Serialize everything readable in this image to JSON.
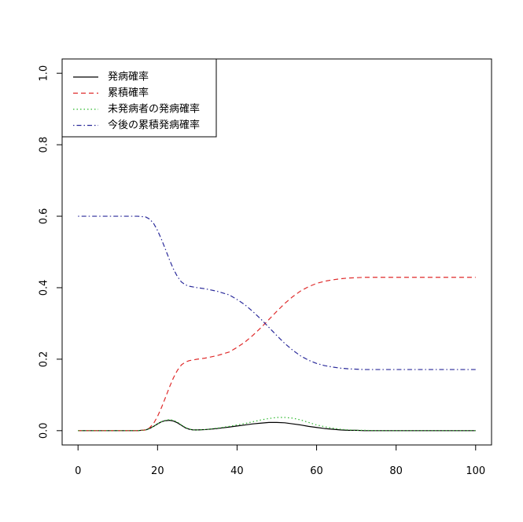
{
  "chart_data": {
    "type": "line",
    "title": "",
    "xlabel": "",
    "ylabel": "",
    "xlim": [
      -4,
      104
    ],
    "ylim": [
      -0.04,
      1.04
    ],
    "x_ticks": [
      0,
      20,
      40,
      60,
      80,
      100
    ],
    "x_tick_labels": [
      "0",
      "20",
      "40",
      "60",
      "80",
      "100"
    ],
    "y_ticks": [
      0.0,
      0.2,
      0.4,
      0.6,
      0.8,
      1.0
    ],
    "y_tick_labels": [
      "0.0",
      "0.2",
      "0.4",
      "0.6",
      "0.8",
      "1.0"
    ],
    "grid": false,
    "legend_position": "top-left",
    "x": [
      0,
      5,
      10,
      15,
      17,
      18,
      19,
      20,
      21,
      22,
      23,
      24,
      25,
      26,
      27,
      28,
      29,
      30,
      32,
      35,
      38,
      40,
      42,
      44,
      46,
      48,
      50,
      52,
      54,
      56,
      58,
      60,
      62,
      64,
      66,
      68,
      70,
      72,
      75,
      80,
      85,
      90,
      95,
      100
    ],
    "series": [
      {
        "name": "発病確率",
        "color": "#000000",
        "dash": "solid",
        "values": [
          0,
          0,
          0,
          0,
          0.002,
          0.006,
          0.012,
          0.019,
          0.025,
          0.028,
          0.029,
          0.027,
          0.022,
          0.015,
          0.008,
          0.004,
          0.002,
          0.002,
          0.003,
          0.006,
          0.01,
          0.013,
          0.016,
          0.019,
          0.021,
          0.023,
          0.023,
          0.022,
          0.019,
          0.016,
          0.012,
          0.009,
          0.006,
          0.004,
          0.002,
          0.001,
          0.001,
          0,
          0,
          0,
          0,
          0,
          0,
          0
        ]
      },
      {
        "name": "累積確率",
        "color": "#df2a2a",
        "dash": "dashed",
        "values": [
          0,
          0,
          0,
          0,
          0.002,
          0.008,
          0.02,
          0.04,
          0.065,
          0.093,
          0.122,
          0.148,
          0.169,
          0.184,
          0.192,
          0.196,
          0.198,
          0.2,
          0.203,
          0.21,
          0.22,
          0.233,
          0.248,
          0.267,
          0.288,
          0.311,
          0.334,
          0.356,
          0.375,
          0.391,
          0.403,
          0.412,
          0.418,
          0.422,
          0.425,
          0.427,
          0.428,
          0.429,
          0.429,
          0.429,
          0.429,
          0.429,
          0.429,
          0.429
        ]
      },
      {
        "name": "未発病者の発病確率",
        "color": "#2db82d",
        "dash": "dotted",
        "values": [
          0,
          0,
          0,
          0,
          0.002,
          0.006,
          0.012,
          0.019,
          0.025,
          0.029,
          0.031,
          0.029,
          0.024,
          0.016,
          0.009,
          0.004,
          0.002,
          0.002,
          0.003,
          0.007,
          0.012,
          0.016,
          0.02,
          0.025,
          0.03,
          0.034,
          0.037,
          0.037,
          0.035,
          0.03,
          0.023,
          0.016,
          0.011,
          0.007,
          0.004,
          0.002,
          0.001,
          0.001,
          0,
          0,
          0,
          0,
          0,
          0
        ]
      },
      {
        "name": "今後の累積発病確率",
        "color": "#2a2a9a",
        "dash": "dotdash",
        "values": [
          0.6,
          0.6,
          0.6,
          0.6,
          0.598,
          0.592,
          0.58,
          0.56,
          0.535,
          0.507,
          0.478,
          0.452,
          0.431,
          0.416,
          0.408,
          0.404,
          0.402,
          0.4,
          0.397,
          0.39,
          0.38,
          0.367,
          0.352,
          0.333,
          0.312,
          0.289,
          0.266,
          0.244,
          0.225,
          0.209,
          0.197,
          0.188,
          0.182,
          0.178,
          0.175,
          0.173,
          0.172,
          0.171,
          0.171,
          0.171,
          0.171,
          0.171,
          0.171,
          0.171
        ]
      }
    ]
  }
}
